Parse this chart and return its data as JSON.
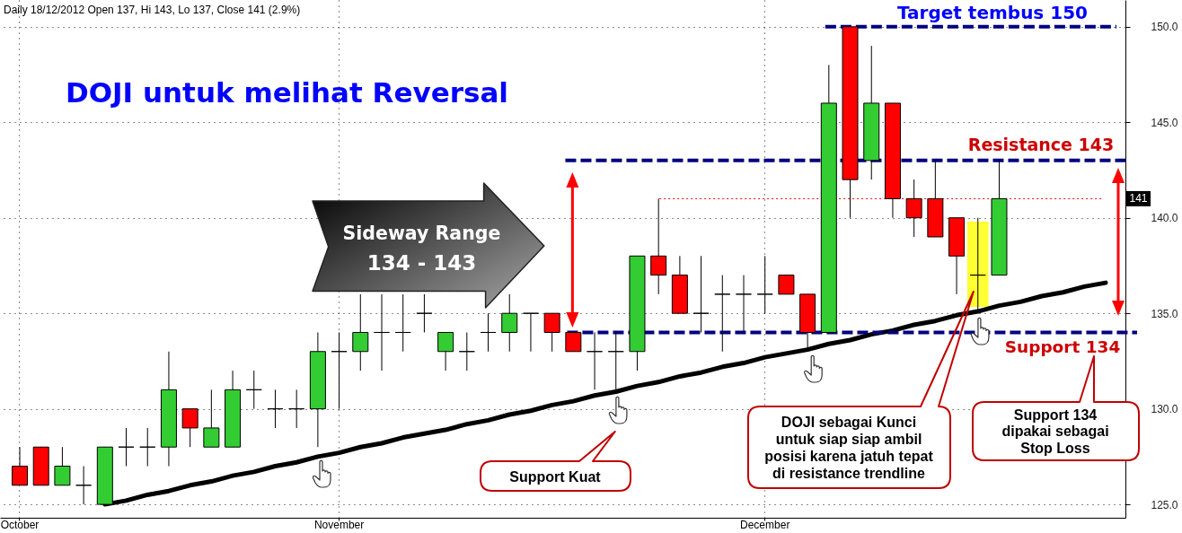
{
  "chart_data": {
    "type": "candlestick",
    "title": "DOJI untuk melihat Reversal",
    "subtitle": "Daily 18/12/2012 Open 137, Hi 143, Lo 137, Close 141 (2.9%)",
    "categories": [
      "October",
      null,
      null,
      null,
      null,
      null,
      null,
      null,
      null,
      null,
      null,
      null,
      null,
      null,
      null,
      "November",
      null,
      null,
      null,
      null,
      null,
      null,
      null,
      null,
      null,
      null,
      null,
      null,
      null,
      null,
      null,
      null,
      null,
      null,
      null,
      "December",
      null,
      null,
      null,
      null,
      null,
      null,
      null,
      null,
      null,
      null,
      null,
      null,
      null,
      null,
      null,
      null
    ],
    "ohlc": [
      [
        127,
        128,
        126,
        126
      ],
      [
        128,
        128,
        126,
        126
      ],
      [
        126,
        128,
        126,
        127
      ],
      [
        126,
        127,
        125,
        126
      ],
      [
        125,
        128,
        125,
        128
      ],
      [
        128,
        129,
        127,
        128
      ],
      [
        128,
        129,
        127,
        128
      ],
      [
        128,
        133,
        127,
        131
      ],
      [
        130,
        130,
        128,
        129
      ],
      [
        128,
        131,
        128,
        129
      ],
      [
        128,
        132,
        128,
        131
      ],
      [
        131,
        132,
        130,
        131
      ],
      [
        130,
        131,
        129,
        130
      ],
      [
        130,
        131,
        129,
        130
      ],
      [
        130,
        134,
        128,
        133
      ],
      [
        133,
        134,
        130,
        133
      ],
      [
        133,
        136,
        132,
        134
      ],
      [
        134,
        136,
        132,
        134
      ],
      [
        134,
        136,
        133,
        134
      ],
      [
        135,
        136,
        134,
        135
      ],
      [
        133,
        134,
        132,
        134
      ],
      [
        133,
        134,
        132,
        133
      ],
      [
        134,
        135,
        133,
        134
      ],
      [
        134,
        136,
        133,
        135
      ],
      [
        135,
        135,
        133,
        135
      ],
      [
        135,
        135,
        133,
        134
      ],
      [
        134,
        134,
        133,
        133
      ],
      [
        133,
        134,
        131,
        133
      ],
      [
        133,
        134,
        131,
        133
      ],
      [
        133,
        138,
        132,
        138
      ],
      [
        138,
        141,
        136,
        137
      ],
      [
        137,
        138,
        135,
        135
      ],
      [
        135,
        138,
        134,
        135
      ],
      [
        136,
        137,
        133,
        136
      ],
      [
        136,
        137,
        134,
        136
      ],
      [
        136,
        138,
        135,
        136
      ],
      [
        137,
        137,
        136,
        136
      ],
      [
        136,
        136,
        133,
        134
      ],
      [
        134,
        148,
        134,
        146
      ],
      [
        150,
        150,
        140,
        142
      ],
      [
        143,
        149,
        142,
        146
      ],
      [
        146,
        146,
        140,
        141
      ],
      [
        141,
        142,
        139,
        140
      ],
      [
        141,
        143,
        139,
        139
      ],
      [
        140,
        140,
        136,
        138
      ],
      [
        137,
        140,
        135,
        137
      ],
      [
        137,
        143,
        137,
        141
      ],
      null,
      null,
      null,
      null,
      null
    ],
    "colors": [
      "#ff0000",
      "#ff0000",
      "#33cc33",
      "#000000",
      "#33cc33",
      "#000000",
      "#000000",
      "#33cc33",
      "#ff0000",
      "#33cc33",
      "#33cc33",
      "#000000",
      "#000000",
      "#000000",
      "#33cc33",
      "#000000",
      "#33cc33",
      "#000000",
      "#000000",
      "#000000",
      "#33cc33",
      "#000000",
      "#000000",
      "#33cc33",
      "#000000",
      "#ff0000",
      "#ff0000",
      "#000000",
      "#000000",
      "#33cc33",
      "#ff0000",
      "#ff0000",
      "#000000",
      "#000000",
      "#000000",
      "#000000",
      "#ff0000",
      "#ff0000",
      "#33cc33",
      "#ff0000",
      "#33cc33",
      "#ff0000",
      "#ff0000",
      "#ff0000",
      "#ff0000",
      "#000000",
      "#33cc33",
      null,
      null,
      null,
      null,
      null
    ],
    "series": [
      {
        "type": "line",
        "color": "#000000",
        "values": [
          null,
          null,
          null,
          null,
          125.0,
          125.2,
          125.5,
          125.7,
          126.0,
          126.2,
          126.5,
          126.7,
          127.0,
          127.2,
          127.5,
          127.7,
          128.0,
          128.2,
          128.5,
          128.7,
          128.9,
          129.2,
          129.4,
          129.7,
          129.9,
          130.2,
          130.4,
          130.7,
          130.9,
          131.2,
          131.4,
          131.7,
          131.9,
          132.2,
          132.4,
          132.7,
          132.9,
          133.1,
          133.4,
          133.6,
          133.9,
          134.1,
          134.4,
          134.6,
          134.9,
          135.1,
          135.4,
          135.6,
          135.9,
          136.1,
          136.4,
          136.6
        ]
      }
    ],
    "ylim": [
      124.3,
      151.4
    ],
    "yticks": [
      {
        "value": 125,
        "label": "125.0"
      },
      {
        "value": 130,
        "label": "130.0"
      },
      {
        "value": 135,
        "label": "135.0"
      },
      {
        "value": 140,
        "label": "140.0"
      },
      {
        "value": 145,
        "label": "145.0"
      },
      {
        "value": 150,
        "label": "150.0"
      }
    ],
    "grid": true,
    "ref_lines": [
      {
        "axis": "y",
        "value": 150,
        "label": "Target tembus 150",
        "color": "#000080",
        "line_style": "dashed"
      },
      {
        "axis": "y",
        "value": 143,
        "label": "Resistance 143",
        "color": "#000080",
        "line_style": "dashed"
      },
      {
        "axis": "y",
        "value": 134,
        "label": "Support 134",
        "color": "#000080",
        "line_style": "dashed"
      },
      {
        "axis": "y",
        "value": 141,
        "label": "141",
        "color": "#ff0000",
        "line_style": "dotted"
      }
    ],
    "annotations": [
      "Sideway Range\n134 - 143",
      "Support Kuat",
      "DOJI sebagai Kunci\nuntuk siap siap ambil\nposisi karena jatuh tepat\ndi resistance trendline",
      "Support 134\ndipakai sebagai\nStop Loss"
    ]
  }
}
